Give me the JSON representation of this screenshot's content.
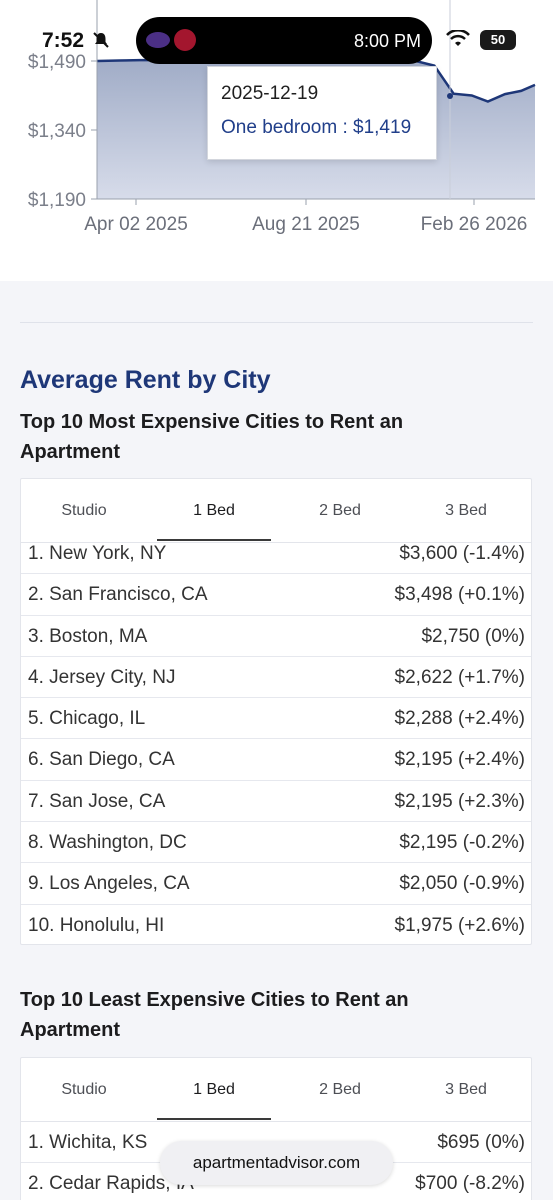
{
  "status_bar": {
    "time": "7:52",
    "island_time": "8:00 PM",
    "battery": "50"
  },
  "chart_data": {
    "type": "area",
    "series": [
      {
        "name": "One bedroom",
        "color": "#1e3778"
      }
    ],
    "y_ticks": [
      "$1,490",
      "$1,340",
      "$1,190"
    ],
    "x_ticks": [
      "Apr 02 2025",
      "Aug 21 2025",
      "Feb 26 2026"
    ],
    "ylim": [
      1190,
      1490
    ],
    "x": [
      "2025-01-20",
      "2025-02-10",
      "2025-03-01",
      "2025-03-20",
      "2025-04-02",
      "2025-05-01",
      "2025-06-01",
      "2025-07-01",
      "2025-08-01",
      "2025-08-21",
      "2025-09-15",
      "2025-10-10",
      "2025-11-05",
      "2025-12-01",
      "2025-12-19",
      "2026-01-05",
      "2026-01-20",
      "2026-02-05",
      "2026-02-20",
      "2026-03-05"
    ],
    "values": [
      1490,
      1491,
      1492,
      1492,
      1492,
      1494,
      1497,
      1498,
      1499,
      1500,
      1500,
      1500,
      1495,
      1480,
      1419,
      1415,
      1402,
      1418,
      1425,
      1438
    ],
    "tooltip": {
      "date": "2025-12-19",
      "label": "One bedroom : $1,419"
    }
  },
  "section_title": "Average Rent by City",
  "most_expensive": {
    "heading": "Top 10 Most Expensive Cities to Rent an Apartment",
    "tabs": [
      "Studio",
      "1 Bed",
      "2 Bed",
      "3 Bed"
    ],
    "active_tab": "1 Bed",
    "rows": [
      {
        "city": "1. New York, NY",
        "price": "$3,600 (-1.4%)"
      },
      {
        "city": "2. San Francisco, CA",
        "price": "$3,498 (+0.1%)"
      },
      {
        "city": "3. Boston, MA",
        "price": "$2,750 (0%)"
      },
      {
        "city": "4. Jersey City, NJ",
        "price": "$2,622 (+1.7%)"
      },
      {
        "city": "5. Chicago, IL",
        "price": "$2,288 (+2.4%)"
      },
      {
        "city": "6. San Diego, CA",
        "price": "$2,195 (+2.4%)"
      },
      {
        "city": "7. San Jose, CA",
        "price": "$2,195 (+2.3%)"
      },
      {
        "city": "8. Washington, DC",
        "price": "$2,195 (-0.2%)"
      },
      {
        "city": "9. Los Angeles, CA",
        "price": "$2,050 (-0.9%)"
      },
      {
        "city": "10. Honolulu, HI",
        "price": "$1,975 (+2.6%)"
      }
    ]
  },
  "least_expensive": {
    "heading": "Top 10 Least Expensive Cities to Rent an Apartment",
    "tabs": [
      "Studio",
      "1 Bed",
      "2 Bed",
      "3 Bed"
    ],
    "active_tab": "1 Bed",
    "rows": [
      {
        "city": "1. Wichita, KS",
        "price": "$695 (0%)"
      },
      {
        "city": "2. Cedar Rapids, IA",
        "price": "$700 (-8.2%)"
      }
    ]
  },
  "url_pill": "apartmentadvisor.com",
  "colors": {
    "accent": "#1e3778",
    "area_fill": "#a9b4cc",
    "line": "#1e3778"
  }
}
